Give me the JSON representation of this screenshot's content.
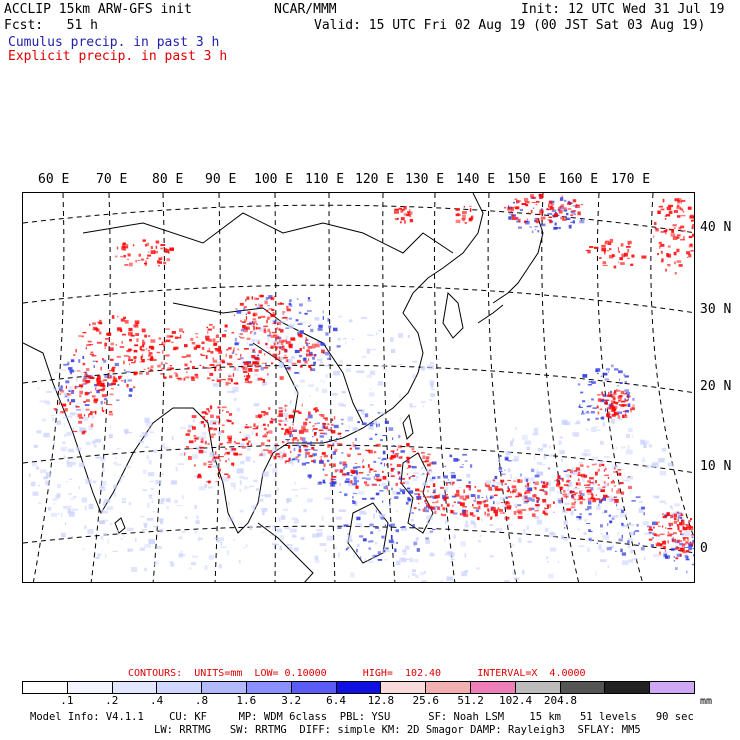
{
  "header": {
    "line1_left": "ACCLIP 15km ARW-GFS init",
    "line1_center": "NCAR/MMM",
    "line1_right": "Init: 12 UTC Wed 31 Jul 19",
    "line2_left": "Fcst:   51 h",
    "line2_right": "Valid: 15 UTC Fri 02 Aug 19 (00 JST Sat 03 Aug 19)",
    "legend_cumulus": "Cumulus precip. in past 3 h",
    "legend_explicit": "Explicit precip. in past 3 h"
  },
  "map": {
    "lon_labels": [
      "60 E",
      "70 E",
      "80 E",
      "90 E",
      "100 E",
      "110 E",
      "120 E",
      "130 E",
      "140 E",
      "150 E",
      "160 E",
      "170 E"
    ],
    "lat_labels": [
      "40 N",
      "30 N",
      "20 N",
      "10 N",
      "0"
    ],
    "cumulus_color": "#3344dd",
    "explicit_color": "#ff0000"
  },
  "contours": {
    "label": "CONTOURS:  UNITS=mm  LOW= 0.10000      HIGH=  102.40      INTERVAL=X  4.0000"
  },
  "colorbar": {
    "colors": [
      "#ffffff",
      "#f4f4ff",
      "#e2e6ff",
      "#cfd6ff",
      "#b3b9ff",
      "#8a90ff",
      "#5a5cf5",
      "#1010e0",
      "#f8dcdc",
      "#f2b0b0",
      "#ee7fb8",
      "#bcbcbc",
      "#555555",
      "#222222",
      "#cfa8f5"
    ],
    "labels": [
      ".1",
      ".2",
      ".4",
      ".8",
      "1.6",
      "3.2",
      "6.4",
      "12.8",
      "25.6",
      "51.2",
      "102.4",
      "204.8"
    ],
    "units": "mm"
  },
  "footer": {
    "line1": "Model Info: V4.1.1    CU: KF     MP: WDM 6class  PBL: YSU      SF: Noah LSM    15 km   51 levels   90 sec",
    "line2": "LW: RRTMG   SW: RRTMG  DIFF: simple KM: 2D Smagor DAMP: Rayleigh3  SFLAY: MM5"
  }
}
